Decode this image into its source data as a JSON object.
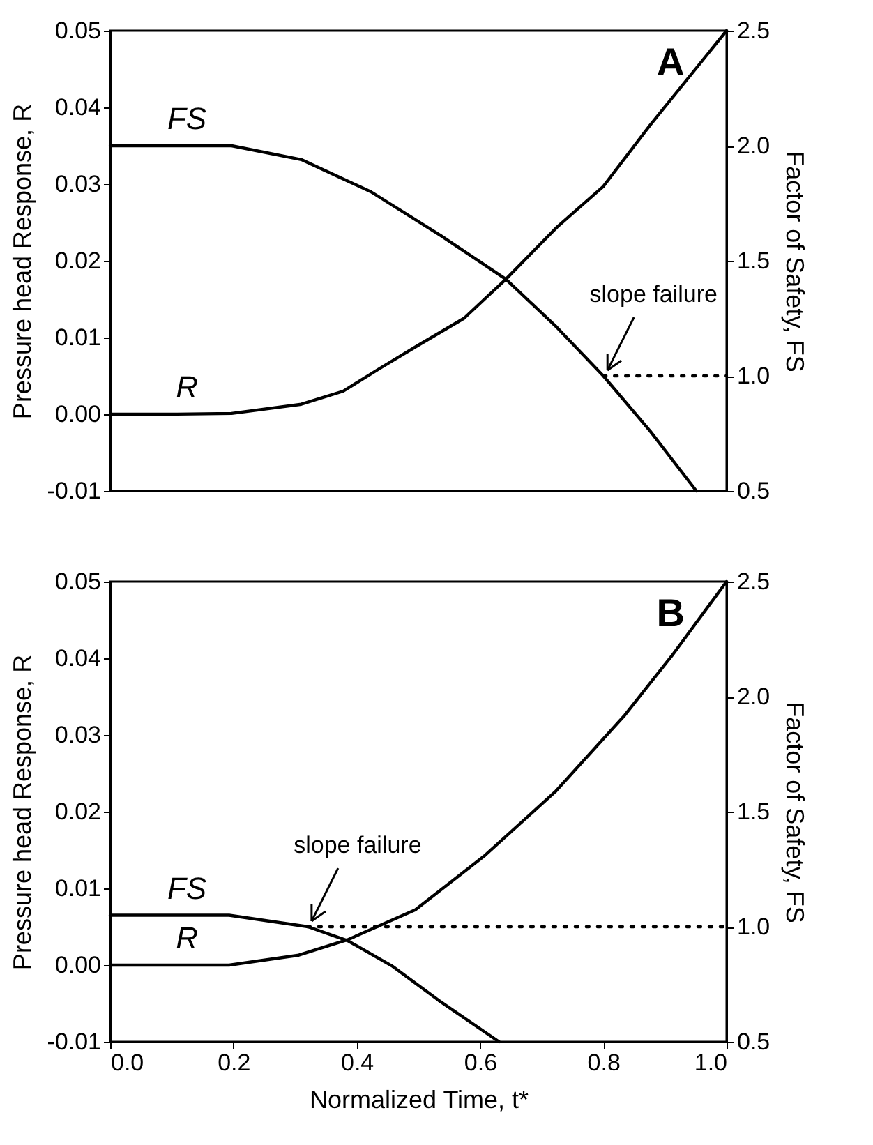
{
  "chart_data": [
    {
      "type": "line",
      "xlim": [
        0,
        1
      ],
      "ylim": [
        -0.01,
        0.05
      ],
      "yticks": [
        {
          "value": -0.01,
          "label": "-0.01"
        },
        {
          "value": 0,
          "label": "0.00"
        },
        {
          "value": 0.01,
          "label": "0.01"
        },
        {
          "value": 0.02,
          "label": "0.02"
        },
        {
          "value": 0.03,
          "label": "0.03"
        },
        {
          "value": 0.04,
          "label": "0.04"
        },
        {
          "value": 0.05,
          "label": "0.05"
        }
      ],
      "y2lim": [
        0.5,
        2.5
      ],
      "y2ticks": [
        {
          "value": 0.5,
          "label": "0.5"
        },
        {
          "value": 1,
          "label": "1.0"
        },
        {
          "value": 1.5,
          "label": "1.5"
        },
        {
          "value": 2,
          "label": "2.0"
        },
        {
          "value": 2.5,
          "label": "2.5"
        }
      ],
      "ylabel": "Pressure head Response, R",
      "y2label": "Factor of Safety, FS",
      "tick_labels": "y",
      "grid": false,
      "marker": "none",
      "annotations": [
        "A",
        {
          "text": "slope failure",
          "x": 0.8,
          "y": 0.005
        }
      ],
      "series": [
        {
          "name": "R",
          "color": "#000000",
          "x": [
            0,
            0.1,
            0.197,
            0.31,
            0.378,
            0.438,
            0.5,
            0.574,
            0.642,
            0.725,
            0.8,
            0.876,
            1.0
          ],
          "values": [
            0,
            0,
            0.0001,
            0.0013,
            0.003,
            0.006,
            0.009,
            0.0125,
            0.0176,
            0.0244,
            0.0297,
            0.0377,
            0.05
          ]
        },
        {
          "name": "FS",
          "color": "#000000",
          "axis": "y2",
          "x": [
            0,
            0.1,
            0.197,
            0.31,
            0.423,
            0.536,
            0.642,
            0.725,
            0.8,
            0.876,
            0.951
          ],
          "values": [
            2.0,
            2.0,
            2.0,
            1.94,
            1.8,
            1.61,
            1.42,
            1.21,
            1.0,
            0.76,
            0.5
          ]
        },
        {
          "color": "#000000",
          "axis": "y2",
          "line_style": "dotted",
          "x": [
            0.8,
            1.0
          ],
          "values": [
            1.0,
            1.0
          ]
        }
      ]
    },
    {
      "type": "line",
      "xlim": [
        0,
        1
      ],
      "xticks": [
        {
          "value": 0,
          "label": "0.0"
        },
        {
          "value": 0.2,
          "label": "0.2"
        },
        {
          "value": 0.4,
          "label": "0.4"
        },
        {
          "value": 0.6,
          "label": "0.6"
        },
        {
          "value": 0.8,
          "label": "0.8"
        },
        {
          "value": 1,
          "label": "1.0"
        }
      ],
      "ylim": [
        -0.01,
        0.05
      ],
      "yticks": [
        {
          "value": -0.01,
          "label": "-0.01"
        },
        {
          "value": 0,
          "label": "0.00"
        },
        {
          "value": 0.01,
          "label": "0.01"
        },
        {
          "value": 0.02,
          "label": "0.02"
        },
        {
          "value": 0.03,
          "label": "0.03"
        },
        {
          "value": 0.04,
          "label": "0.04"
        },
        {
          "value": 0.05,
          "label": "0.05"
        }
      ],
      "y2lim": [
        0.5,
        2.5
      ],
      "y2ticks": [
        {
          "value": 0.5,
          "label": "0.5"
        },
        {
          "value": 1,
          "label": "1.0"
        },
        {
          "value": 1.5,
          "label": "1.5"
        },
        {
          "value": 2,
          "label": "2.0"
        },
        {
          "value": 2.5,
          "label": "2.5"
        }
      ],
      "xlabel": "Normalized Time, t*",
      "ylabel": "Pressure head Response, R",
      "y2label": "Factor of Safety, FS",
      "grid": false,
      "marker": "none",
      "annotations": [
        "B",
        {
          "text": "slope failure",
          "x": 0.32,
          "y": 0.005
        }
      ],
      "series": [
        {
          "name": "R",
          "color": "#000000",
          "x": [
            0,
            0.1,
            0.193,
            0.306,
            0.385,
            0.495,
            0.608,
            0.722,
            0.835,
            0.911,
            1.0
          ],
          "values": [
            0,
            0,
            0,
            0.0013,
            0.0033,
            0.0072,
            0.0143,
            0.0226,
            0.0326,
            0.0403,
            0.05
          ]
        },
        {
          "name": "FS",
          "color": "#000000",
          "axis": "y2",
          "x": [
            0,
            0.1,
            0.193,
            0.321,
            0.385,
            0.457,
            0.533,
            0.631
          ],
          "values": [
            1.05,
            1.05,
            1.05,
            1.0,
            0.94,
            0.83,
            0.68,
            0.5
          ]
        },
        {
          "color": "#000000",
          "axis": "y2",
          "line_style": "dotted",
          "x": [
            0.32,
            1.0
          ],
          "values": [
            1.0,
            1.0
          ]
        }
      ]
    }
  ]
}
